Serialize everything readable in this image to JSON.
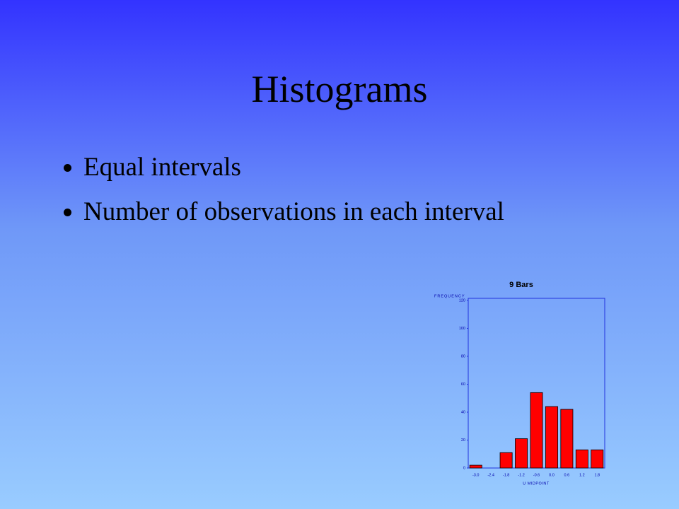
{
  "slide": {
    "title": "Histograms",
    "bullets": [
      "Equal intervals",
      "Number of observations in each interval"
    ]
  },
  "chart_data": {
    "type": "bar",
    "title": "9 Bars",
    "y_label": "FREQUENCY",
    "x_label": "U MIDPOINT",
    "categories": [
      "-3.0",
      "-2.4",
      "-1.8",
      "-1.2",
      "-0.6",
      "0.0",
      "0.6",
      "1.2",
      "1.8"
    ],
    "values": [
      2,
      0,
      11,
      21,
      54,
      44,
      42,
      13,
      13
    ],
    "color": "#ff0000",
    "ylim": [
      0,
      120
    ],
    "yticks": [
      0,
      20,
      40,
      60,
      80,
      100,
      120
    ]
  }
}
